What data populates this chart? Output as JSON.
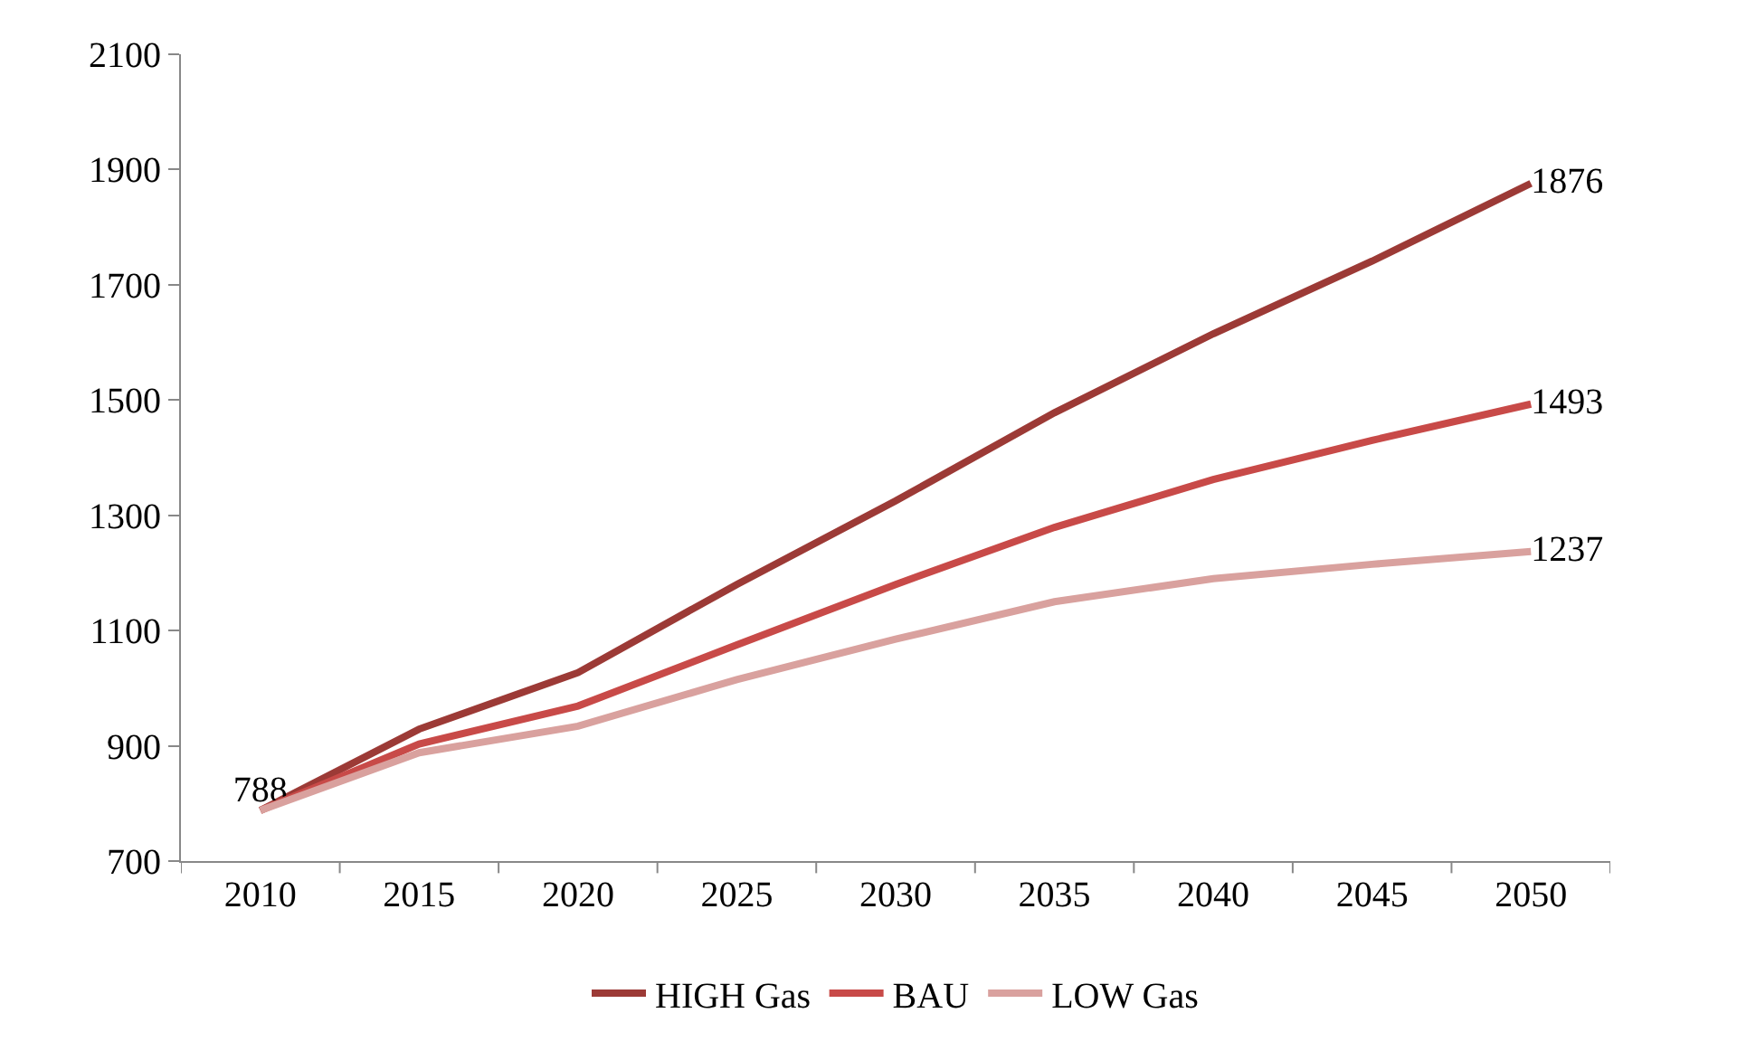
{
  "chart_data": {
    "type": "line",
    "categories": [
      "2010",
      "2015",
      "2020",
      "2025",
      "2030",
      "2035",
      "2040",
      "2045",
      "2050"
    ],
    "series": [
      {
        "name": "HIGH Gas",
        "color": "#9c3a36",
        "values": [
          788,
          929,
          1027,
          1180,
          1325,
          1478,
          1615,
          1741,
          1876
        ],
        "value_labels": [
          "788",
          null,
          null,
          null,
          null,
          null,
          null,
          null,
          "1876"
        ]
      },
      {
        "name": "BAU",
        "color": "#c84a48",
        "values": [
          788,
          903,
          969,
          1075,
          1180,
          1279,
          1362,
          1430,
          1493
        ],
        "value_labels": [
          null,
          null,
          null,
          null,
          null,
          null,
          null,
          null,
          "1493"
        ]
      },
      {
        "name": "LOW Gas",
        "color": "#d9a19e",
        "values": [
          788,
          888,
          934,
          1015,
          1085,
          1150,
          1190,
          1215,
          1237
        ],
        "value_labels": [
          null,
          null,
          null,
          null,
          null,
          null,
          null,
          null,
          "1237"
        ]
      }
    ],
    "ylim": [
      700,
      2100
    ],
    "yticks": [
      700,
      900,
      1100,
      1300,
      1500,
      1700,
      1900,
      2100
    ],
    "legend": "bottom",
    "marker": "none",
    "line_style": "solid"
  }
}
